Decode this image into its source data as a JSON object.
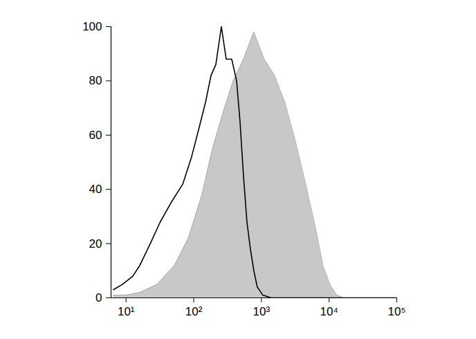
{
  "chart_data": {
    "type": "line",
    "log": "x",
    "xlim": [
      6,
      100000
    ],
    "xticks": [
      {
        "value": 10,
        "label": "10¹"
      },
      {
        "value": 100,
        "label": "10²"
      },
      {
        "value": 1000,
        "label": "10³"
      },
      {
        "value": 10000,
        "label": "10⁴"
      },
      {
        "value": 100000,
        "label": "10⁵"
      }
    ],
    "ylim": [
      0,
      100
    ],
    "yticks": [
      0,
      20,
      40,
      60,
      80,
      100
    ],
    "grid": false,
    "series": [
      {
        "type": "area",
        "color": "#c8c8c8",
        "x": [
          6.5,
          10,
          16,
          28.8,
          52,
          83,
          132,
          189,
          268,
          382,
          543,
          773,
          1099,
          1564,
          2223,
          3162,
          4498,
          6397,
          8091,
          10234,
          12945,
          16370,
          100000
        ],
        "values": [
          1,
          1,
          2,
          5,
          12,
          22,
          38,
          55,
          68,
          80,
          88,
          98,
          88,
          82,
          72,
          58,
          42,
          25,
          12,
          5,
          1,
          0,
          0
        ]
      },
      {
        "type": "line",
        "color": "#000000",
        "x": [
          6.5,
          8.9,
          12.6,
          16,
          22.8,
          32,
          46,
          69,
          93,
          118,
          149,
          180,
          212,
          256,
          302,
          364,
          430,
          483,
          543,
          611,
          687,
          773,
          869,
          1047,
          1390,
          100000
        ],
        "values": [
          3,
          5,
          8,
          12,
          20,
          28,
          35,
          42,
          52,
          62,
          72,
          82,
          86,
          100,
          88,
          88,
          80,
          65,
          45,
          28,
          18,
          10,
          4,
          1,
          0,
          0
        ]
      }
    ]
  }
}
